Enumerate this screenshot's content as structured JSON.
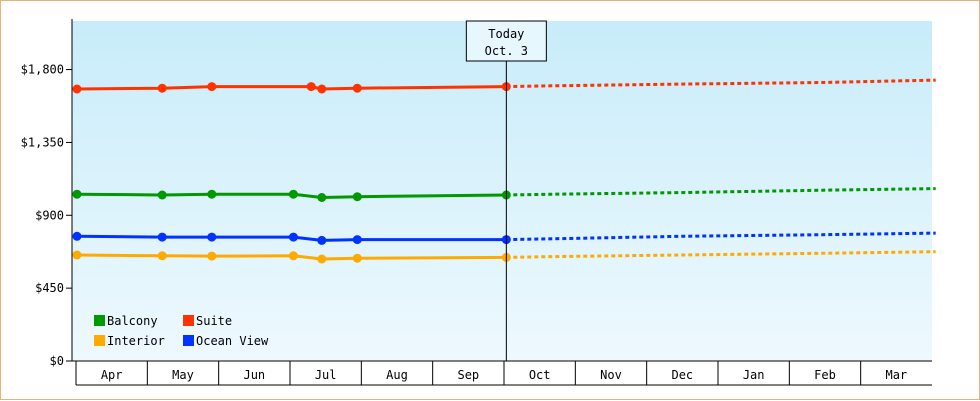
{
  "chart_data": {
    "type": "line",
    "title": "",
    "xlabel": "",
    "ylabel": "",
    "x_categories": [
      "Apr",
      "May",
      "Jun",
      "Jul",
      "Aug",
      "Sep",
      "Oct",
      "Nov",
      "Dec",
      "Jan",
      "Feb",
      "Mar"
    ],
    "yticks": [
      "$0",
      "$450",
      "$900",
      "$1,350",
      "$1,800"
    ],
    "ylim": [
      0,
      2100
    ],
    "grid": false,
    "legend_position": "bottom-left",
    "today_marker": {
      "line1": "Today",
      "line2": "Oct. 3",
      "x_month_index": 6.05
    },
    "series": [
      {
        "name": "Suite",
        "color": "#ff3300",
        "observed": [
          [
            0.0,
            1680
          ],
          [
            1.2,
            1685
          ],
          [
            1.9,
            1695
          ],
          [
            3.3,
            1695
          ],
          [
            3.45,
            1680
          ],
          [
            3.95,
            1685
          ],
          [
            6.05,
            1695
          ]
        ],
        "projected": [
          [
            6.05,
            1695
          ],
          [
            6.7,
            1700
          ],
          [
            8.5,
            1710
          ],
          [
            10.5,
            1720
          ],
          [
            12.1,
            1735
          ]
        ]
      },
      {
        "name": "Balcony",
        "color": "#009900",
        "observed": [
          [
            0.0,
            1030
          ],
          [
            1.2,
            1025
          ],
          [
            1.9,
            1030
          ],
          [
            3.05,
            1030
          ],
          [
            3.45,
            1010
          ],
          [
            3.95,
            1015
          ],
          [
            6.05,
            1025
          ]
        ],
        "projected": [
          [
            6.05,
            1025
          ],
          [
            6.7,
            1030
          ],
          [
            8.5,
            1040
          ],
          [
            10.5,
            1055
          ],
          [
            12.1,
            1065
          ]
        ]
      },
      {
        "name": "Ocean View",
        "color": "#0033ff",
        "observed": [
          [
            0.0,
            770
          ],
          [
            1.2,
            765
          ],
          [
            1.9,
            765
          ],
          [
            3.05,
            765
          ],
          [
            3.45,
            745
          ],
          [
            3.95,
            750
          ],
          [
            6.05,
            750
          ]
        ],
        "projected": [
          [
            6.05,
            750
          ],
          [
            6.7,
            755
          ],
          [
            8.5,
            770
          ],
          [
            10.5,
            780
          ],
          [
            12.1,
            790
          ]
        ]
      },
      {
        "name": "Interior",
        "color": "#ffaa00",
        "observed": [
          [
            0.0,
            655
          ],
          [
            1.2,
            650
          ],
          [
            1.9,
            648
          ],
          [
            3.05,
            650
          ],
          [
            3.45,
            630
          ],
          [
            3.95,
            635
          ],
          [
            6.05,
            640
          ]
        ],
        "projected": [
          [
            6.05,
            640
          ],
          [
            6.7,
            645
          ],
          [
            8.5,
            655
          ],
          [
            10.5,
            665
          ],
          [
            12.1,
            675
          ]
        ]
      }
    ],
    "legend": [
      {
        "label": "Balcony",
        "color": "#009900"
      },
      {
        "label": "Suite",
        "color": "#ff3300"
      },
      {
        "label": "Interior",
        "color": "#ffaa00"
      },
      {
        "label": "Ocean View",
        "color": "#0033ff"
      }
    ]
  }
}
